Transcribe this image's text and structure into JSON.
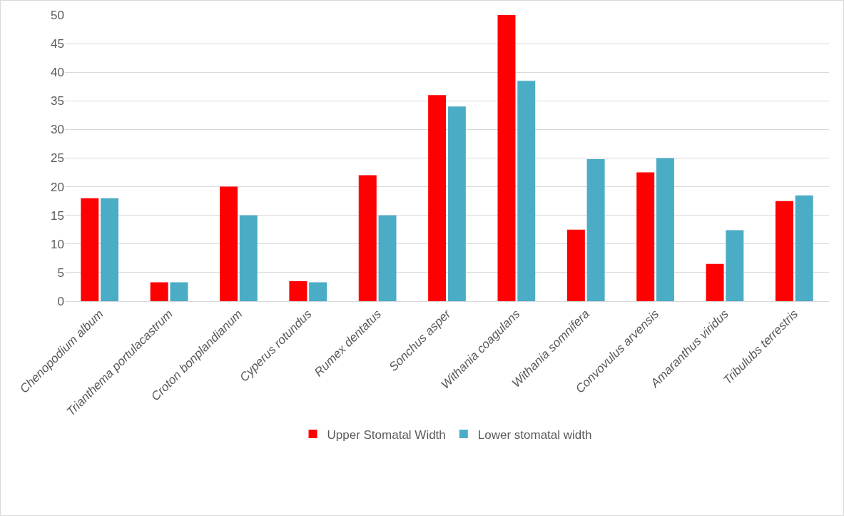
{
  "chart_data": {
    "type": "bar",
    "categories": [
      "Chenopodium album",
      "Trianthema portulacastrum",
      "Croton bonplandianum",
      "Cyperus rotundus",
      "Rumex dentatus",
      "Sonchus asper",
      "Withania coagulans",
      "Withania somnifera",
      "Convovulus arvensis",
      "Amaranthus viridus",
      "Tribulubs terrestris"
    ],
    "series": [
      {
        "name": "Upper Stomatal Width",
        "color": "#ff0000",
        "values": [
          18,
          3.3,
          20,
          3.5,
          22,
          36,
          50,
          12.5,
          22.5,
          6.5,
          17.5
        ]
      },
      {
        "name": "Lower stomatal width",
        "color": "#4bacc6",
        "values": [
          18,
          3.3,
          15,
          3.3,
          15,
          34,
          38.5,
          24.8,
          25,
          12.4,
          18.5
        ]
      }
    ],
    "ylim": [
      0,
      50
    ],
    "yticks": [
      0,
      5,
      10,
      15,
      20,
      25,
      30,
      35,
      40,
      45,
      50
    ],
    "grid": "y",
    "legend": "bottom"
  }
}
